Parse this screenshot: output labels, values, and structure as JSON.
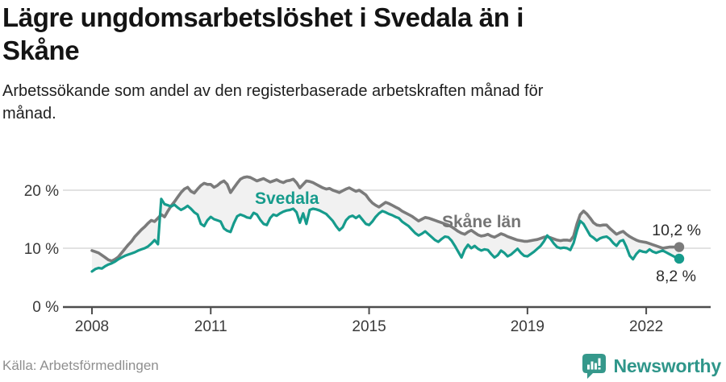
{
  "page": {
    "title": "Lägre ungdomsarbetslöshet i Svedala än i\nSkåne",
    "subtitle": "Arbetssökande som andel av den registerbaserade arbetskraften månad för\nmånad.",
    "source": "Källa: Arbetsförmedlingen",
    "brand": "Newsworthy"
  },
  "colors": {
    "svedala": "#169b8c",
    "skane": "#7b7b7b",
    "fill_between": "#f1f1f1",
    "gridline": "#e2e2e2",
    "axis": "#4d4d4d",
    "tick_text": "#3a3a3a",
    "brand_teal": "#2f968a"
  },
  "chart_data": {
    "type": "line",
    "title": "Lägre ungdomsarbetslöshet i Svedala än i Skåne",
    "subtitle": "Arbetssökande som andel av den registerbaserade arbetskraften månad för månad.",
    "unit": "percent",
    "frequency": "monthly",
    "start": "2008-01",
    "end": "2022-11",
    "grid": "horizontal",
    "legend": "inline-labels",
    "x_ticks": [
      "2008",
      "2011",
      "2015",
      "2019",
      "2022"
    ],
    "y_ticks": [
      0,
      10,
      20
    ],
    "y_tick_labels": [
      "0 %",
      "10 %",
      "20 %"
    ],
    "ylim": [
      0,
      24.3
    ],
    "series": [
      {
        "name": "Skåne län",
        "color": "#7b7b7b",
        "end_label": "10,2 %",
        "last_value": 10.2,
        "values": [
          9.6,
          9.4,
          9.2,
          8.8,
          8.4,
          8.0,
          7.8,
          8.1,
          8.5,
          9.2,
          9.9,
          10.6,
          11.2,
          12.0,
          12.6,
          13.2,
          13.7,
          14.3,
          14.8,
          14.6,
          15.2,
          15.8,
          15.4,
          16.4,
          17.3,
          18.0,
          18.8,
          19.6,
          20.2,
          20.5,
          19.8,
          19.5,
          20.2,
          20.8,
          21.2,
          21.0,
          21.0,
          20.5,
          20.8,
          21.3,
          21.6,
          21.0,
          19.6,
          20.4,
          21.2,
          21.9,
          22.2,
          22.3,
          22.2,
          21.9,
          21.6,
          21.8,
          22.0,
          21.7,
          21.4,
          21.6,
          21.8,
          21.5,
          21.3,
          21.6,
          21.7,
          21.9,
          21.3,
          20.4,
          21.0,
          21.6,
          21.5,
          21.3,
          21.0,
          20.7,
          20.4,
          20.2,
          20.3,
          20.0,
          19.8,
          19.6,
          19.9,
          20.2,
          20.4,
          20.1,
          19.8,
          20.0,
          19.6,
          19.2,
          18.4,
          17.8,
          17.4,
          17.1,
          17.5,
          17.9,
          17.7,
          17.4,
          17.1,
          16.8,
          16.4,
          16.1,
          15.8,
          15.5,
          15.1,
          14.7,
          15.0,
          15.3,
          15.2,
          15.0,
          14.8,
          14.6,
          14.4,
          14.2,
          14.0,
          13.7,
          13.3,
          12.9,
          12.6,
          12.4,
          12.8,
          13.1,
          12.7,
          12.3,
          12.1,
          12.2,
          12.4,
          12.1,
          11.9,
          12.2,
          12.5,
          12.3,
          12.0,
          11.8,
          11.6,
          11.4,
          11.3,
          11.2,
          11.2,
          11.3,
          11.4,
          11.5,
          11.7,
          11.9,
          12.0,
          11.8,
          11.6,
          11.4,
          11.3,
          11.4,
          11.4,
          11.3,
          12.1,
          14.2,
          15.8,
          16.4,
          15.9,
          15.2,
          14.4,
          14.0,
          13.9,
          14.0,
          14.0,
          13.4,
          12.9,
          12.4,
          12.7,
          12.9,
          12.4,
          12.0,
          11.7,
          11.4,
          11.2,
          11.1,
          11.0,
          10.8,
          10.6,
          10.4,
          10.2,
          10.0,
          10.1,
          10.2,
          10.2,
          10.2,
          10.2
        ]
      },
      {
        "name": "Svedala",
        "color": "#169b8c",
        "end_label": "8,2 %",
        "last_value": 8.2,
        "values": [
          6.0,
          6.4,
          6.6,
          6.5,
          6.9,
          7.2,
          7.4,
          7.7,
          8.1,
          8.4,
          8.7,
          8.9,
          9.1,
          9.3,
          9.6,
          9.8,
          10.0,
          10.3,
          10.8,
          11.4,
          10.7,
          18.5,
          17.6,
          17.4,
          17.2,
          17.5,
          17.0,
          16.6,
          16.9,
          17.3,
          16.8,
          16.2,
          15.8,
          14.2,
          13.8,
          14.8,
          15.4,
          15.0,
          14.8,
          14.6,
          13.4,
          13.0,
          12.8,
          14.3,
          15.5,
          15.8,
          15.6,
          15.3,
          15.2,
          16.1,
          15.8,
          14.9,
          14.2,
          14.0,
          15.2,
          15.8,
          15.6,
          16.0,
          16.3,
          16.5,
          16.6,
          16.8,
          16.2,
          14.4,
          16.0,
          14.2,
          16.6,
          16.8,
          16.7,
          16.5,
          16.2,
          15.9,
          15.3,
          14.7,
          13.8,
          13.1,
          13.6,
          14.8,
          15.4,
          15.6,
          15.2,
          15.6,
          14.9,
          14.2,
          14.0,
          14.6,
          15.4,
          16.0,
          16.4,
          16.2,
          15.9,
          15.7,
          15.4,
          15.2,
          14.6,
          14.2,
          13.8,
          13.2,
          12.6,
          12.2,
          12.5,
          12.9,
          12.4,
          11.9,
          11.4,
          11.1,
          11.6,
          12.0,
          11.9,
          11.3,
          10.4,
          9.4,
          8.4,
          9.8,
          10.6,
          10.0,
          10.4,
          9.9,
          9.6,
          9.8,
          9.7,
          9.0,
          8.4,
          8.8,
          9.6,
          9.2,
          8.6,
          8.9,
          9.4,
          9.9,
          9.2,
          8.7,
          8.6,
          9.0,
          9.4,
          9.9,
          10.4,
          11.2,
          12.2,
          11.6,
          10.8,
          10.2,
          10.0,
          10.1,
          10.0,
          9.7,
          10.9,
          13.0,
          14.7,
          14.2,
          13.2,
          12.2,
          11.8,
          11.3,
          11.7,
          11.9,
          12.0,
          11.6,
          10.9,
          10.4,
          11.2,
          11.4,
          10.2,
          8.7,
          8.1,
          9.0,
          9.6,
          9.4,
          9.3,
          9.8,
          9.4,
          9.2,
          9.4,
          9.6,
          9.3,
          9.0,
          8.7,
          8.4,
          8.2
        ]
      }
    ]
  }
}
